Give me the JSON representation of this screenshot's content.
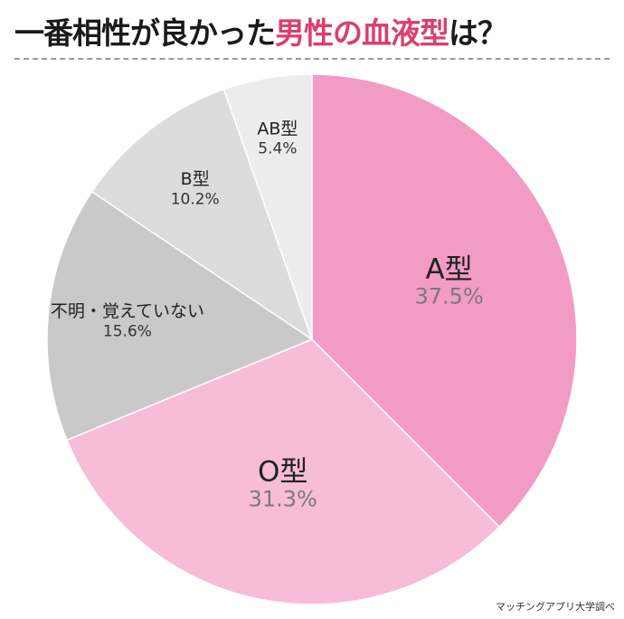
{
  "title": {
    "prefix": "一番相性が良かった",
    "highlight": "男性の血液型",
    "suffix": "は？"
  },
  "source": "マッチングアプリ大学調べ",
  "colors": {
    "title_text": "#1a1a1a",
    "title_highlight": "#d9406b",
    "label_name": "#222222",
    "label_pct_large": "#7a7a7a",
    "label_pct_small": "#333333"
  },
  "chart_data": {
    "type": "pie",
    "start": "12 o'clock",
    "direction": "clockwise",
    "slices": [
      {
        "label": "A型",
        "value": 37.5,
        "value_text": "37.5%",
        "color": "#f29bc5"
      },
      {
        "label": "O型",
        "value": 31.3,
        "value_text": "31.3%",
        "color": "#f7bcd8"
      },
      {
        "label": "不明・覚えていない",
        "value": 15.6,
        "value_text": "15.6%",
        "color": "#c9c9c9"
      },
      {
        "label": "B型",
        "value": 10.2,
        "value_text": "10.2%",
        "color": "#dcdcdc"
      },
      {
        "label": "AB型",
        "value": 5.4,
        "value_text": "5.4%",
        "color": "#ececec"
      }
    ]
  }
}
